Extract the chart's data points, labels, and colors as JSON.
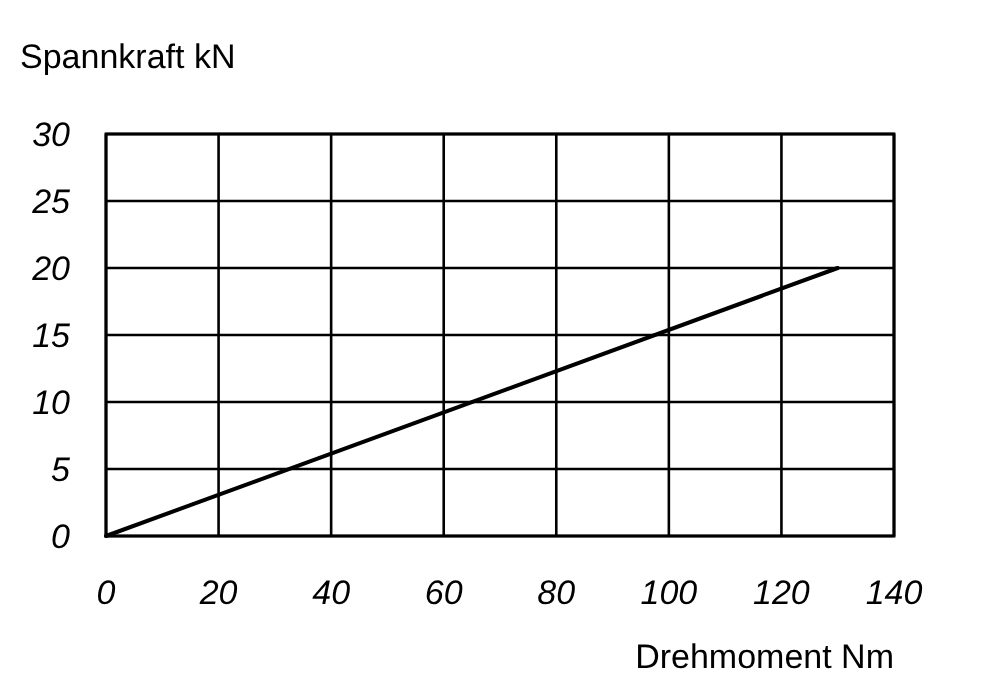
{
  "chart_data": {
    "type": "line",
    "xlabel": "Drehmoment Nm",
    "ylabel": "Spannkraft kN",
    "x": [
      0,
      130
    ],
    "series": [
      {
        "color": "#000000",
        "values": [
          0,
          20
        ]
      }
    ],
    "xlim": [
      0,
      140
    ],
    "xticks": [
      0,
      20,
      40,
      60,
      80,
      100,
      120,
      140
    ],
    "ylim": [
      0,
      30
    ],
    "yticks": [
      0,
      5,
      10,
      15,
      20,
      25,
      30
    ],
    "grid": true,
    "marker": "none",
    "line_style": "solid"
  }
}
